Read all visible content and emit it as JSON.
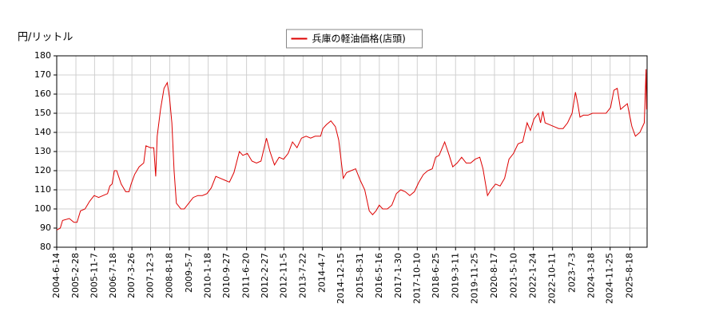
{
  "chart_data": {
    "type": "line",
    "y_label": "円/リットル",
    "series": [
      {
        "name": "兵庫の軽油価格(店頭)",
        "color": "#dd0000",
        "x": [
          "2004-6-14",
          "2004-8-1",
          "2004-9-1",
          "2004-12-1",
          "2005-2-1",
          "2005-3-15",
          "2005-5-1",
          "2005-7-1",
          "2005-9-1",
          "2005-11-1",
          "2006-1-1",
          "2006-3-1",
          "2006-5-1",
          "2006-6-1",
          "2006-7-1",
          "2006-8-1",
          "2006-9-1",
          "2006-11-1",
          "2007-1-1",
          "2007-2-15",
          "2007-3-15",
          "2007-5-1",
          "2007-7-1",
          "2007-9-1",
          "2007-10-1",
          "2007-12-1",
          "2008-1-15",
          "2008-2-10",
          "2008-3-1",
          "2008-4-15",
          "2008-6-1",
          "2008-7-15",
          "2008-8-15",
          "2008-9-15",
          "2008-10-15",
          "2008-11-15",
          "2009-1-15",
          "2009-3-1",
          "2009-5-1",
          "2009-7-1",
          "2009-9-1",
          "2009-11-1",
          "2010-1-1",
          "2010-3-1",
          "2010-5-1",
          "2010-7-1",
          "2010-9-1",
          "2010-11-1",
          "2011-1-1",
          "2011-3-15",
          "2011-5-1",
          "2011-7-1",
          "2011-9-1",
          "2011-11-1",
          "2012-1-1",
          "2012-3-15",
          "2012-5-1",
          "2012-7-1",
          "2012-9-1",
          "2012-11-1",
          "2013-1-1",
          "2013-3-1",
          "2013-5-1",
          "2013-7-1",
          "2013-9-1",
          "2013-11-1",
          "2014-1-1",
          "2014-3-15",
          "2014-4-15",
          "2014-6-1",
          "2014-8-1",
          "2014-10-1",
          "2014-11-15",
          "2015-1-15",
          "2015-3-1",
          "2015-5-1",
          "2015-7-1",
          "2015-9-1",
          "2015-11-1",
          "2016-1-1",
          "2016-2-15",
          "2016-4-1",
          "2016-5-15",
          "2016-7-1",
          "2016-9-1",
          "2016-11-1",
          "2017-1-1",
          "2017-3-1",
          "2017-5-1",
          "2017-7-1",
          "2017-9-1",
          "2017-11-1",
          "2018-1-1",
          "2018-3-1",
          "2018-5-1",
          "2018-6-15",
          "2018-8-1",
          "2018-10-15",
          "2018-12-15",
          "2019-2-1",
          "2019-4-1",
          "2019-6-1",
          "2019-8-1",
          "2019-10-1",
          "2019-12-1",
          "2020-2-1",
          "2020-3-15",
          "2020-5-15",
          "2020-7-1",
          "2020-9-1",
          "2020-11-1",
          "2021-1-1",
          "2021-3-1",
          "2021-5-1",
          "2021-7-1",
          "2021-9-1",
          "2021-11-1",
          "2021-12-15",
          "2022-2-1",
          "2022-4-1",
          "2022-5-1",
          "2022-6-1",
          "2022-7-1",
          "2022-9-1",
          "2022-11-1",
          "2023-1-1",
          "2023-3-1",
          "2023-5-1",
          "2023-7-1",
          "2023-8-15",
          "2023-9-15",
          "2023-10-15",
          "2023-12-1",
          "2024-2-1",
          "2024-4-1",
          "2024-6-1",
          "2024-8-1",
          "2024-10-1",
          "2024-12-1",
          "2025-1-15",
          "2025-3-1",
          "2025-4-15",
          "2025-5-15",
          "2025-7-15",
          "2025-9-15",
          "2025-11-1",
          "2026-1-1",
          "2026-3-1",
          "2026-3-25",
          "2026-4-1"
        ],
        "values": [
          89,
          90,
          94,
          95,
          93,
          93,
          99,
          100,
          104,
          107,
          106,
          107,
          108,
          112,
          113,
          120,
          120,
          113,
          109,
          109,
          113,
          118,
          122,
          124,
          133,
          132,
          132,
          117,
          138,
          152,
          163,
          166,
          158,
          145,
          120,
          103,
          100,
          100,
          103,
          106,
          107,
          107,
          108,
          111,
          117,
          116,
          115,
          114,
          119,
          130,
          128,
          129,
          125,
          124,
          125,
          137,
          130,
          123,
          127,
          126,
          129,
          135,
          132,
          137,
          138,
          137,
          138,
          138,
          142,
          144,
          146,
          143,
          136,
          116,
          119,
          120,
          121,
          115,
          110,
          99,
          97,
          99,
          102,
          100,
          100,
          102,
          108,
          110,
          109,
          107,
          109,
          114,
          118,
          120,
          121,
          127,
          128,
          135,
          128,
          122,
          124,
          127,
          124,
          124,
          126,
          127,
          121,
          107,
          110,
          113,
          112,
          116,
          126,
          129,
          134,
          135,
          145,
          141,
          147,
          150,
          145,
          151,
          145,
          144,
          143,
          142,
          142,
          145,
          150,
          161,
          155,
          148,
          149,
          149,
          150,
          150,
          150,
          150,
          153,
          162,
          163,
          152,
          153,
          155,
          143,
          138,
          140,
          145,
          173,
          152
        ]
      }
    ],
    "xlim": [
      "2004-6-14",
      "2026-4-8"
    ],
    "xticks": [
      "2004-6-14",
      "2005-2-28",
      "2005-11-7",
      "2006-7-18",
      "2007-3-26",
      "2007-12-3",
      "2008-8-18",
      "2009-5-7",
      "2010-1-18",
      "2010-9-27",
      "2011-6-20",
      "2012-2-27",
      "2012-11-5",
      "2013-7-22",
      "2014-4-7",
      "2014-12-15",
      "2015-8-31",
      "2016-5-16",
      "2017-1-30",
      "2017-10-10",
      "2018-6-25",
      "2019-3-11",
      "2019-11-25",
      "2020-8-17",
      "2021-5-10",
      "2022-1-24",
      "2022-10-11",
      "2023-7-3",
      "2024-3-18",
      "2024-11-25",
      "2025-8-18"
    ],
    "ylim": [
      80,
      180
    ],
    "yticks": [
      80,
      90,
      100,
      110,
      120,
      130,
      140,
      150,
      160,
      170,
      180
    ],
    "grid": true,
    "legend": "top"
  }
}
